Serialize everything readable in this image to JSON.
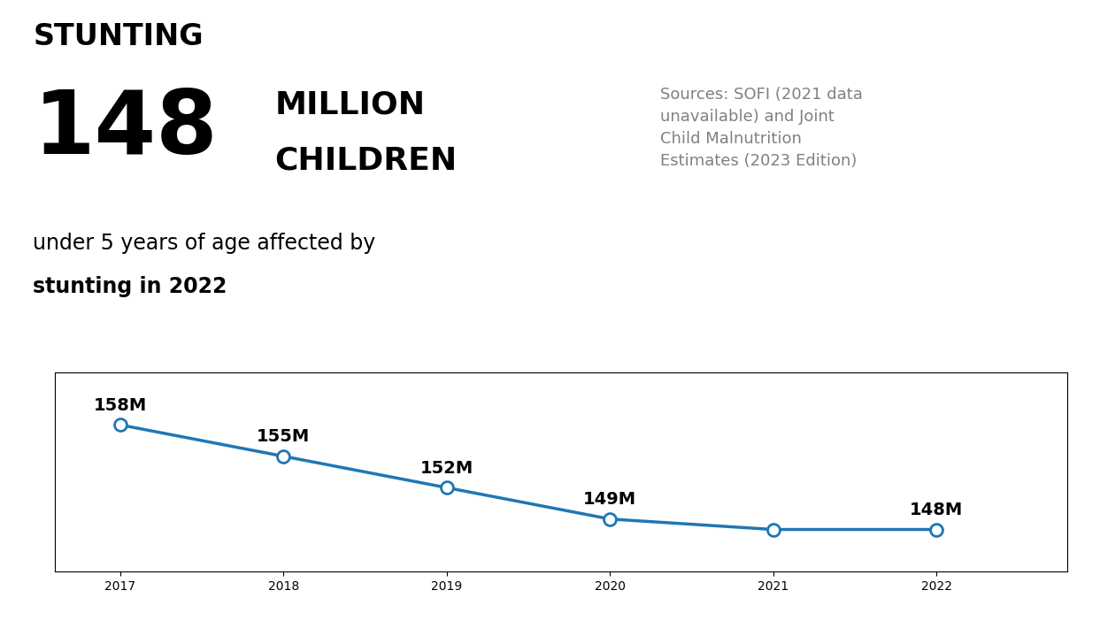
{
  "chart_data": {
    "type": "line",
    "title": "STUNTING",
    "annotations": [
      "148",
      "MILLION",
      "CHILDREN",
      "under 5 years of age affected by",
      "stunting in 2022",
      "Sources: SOFI (2021 data\nunavailable) and Joint\nChild Malnutrition\nEstimates (2023 Edition)"
    ],
    "x": [
      2017,
      2018,
      2019,
      2020,
      2021,
      2022
    ],
    "values": [
      158,
      155,
      152,
      149,
      148,
      148
    ],
    "value_labels": [
      "158M",
      "155M",
      "152M",
      "149M",
      null,
      "148M"
    ],
    "data_labels": true,
    "marker": "o",
    "xlim": [
      2016.6,
      2022.8
    ],
    "xticks": [
      2017,
      2018,
      2019,
      2020,
      2021,
      2022
    ],
    "ylim": [
      144,
      163
    ],
    "yticks": [],
    "tick_labels": "x",
    "grid": false
  }
}
